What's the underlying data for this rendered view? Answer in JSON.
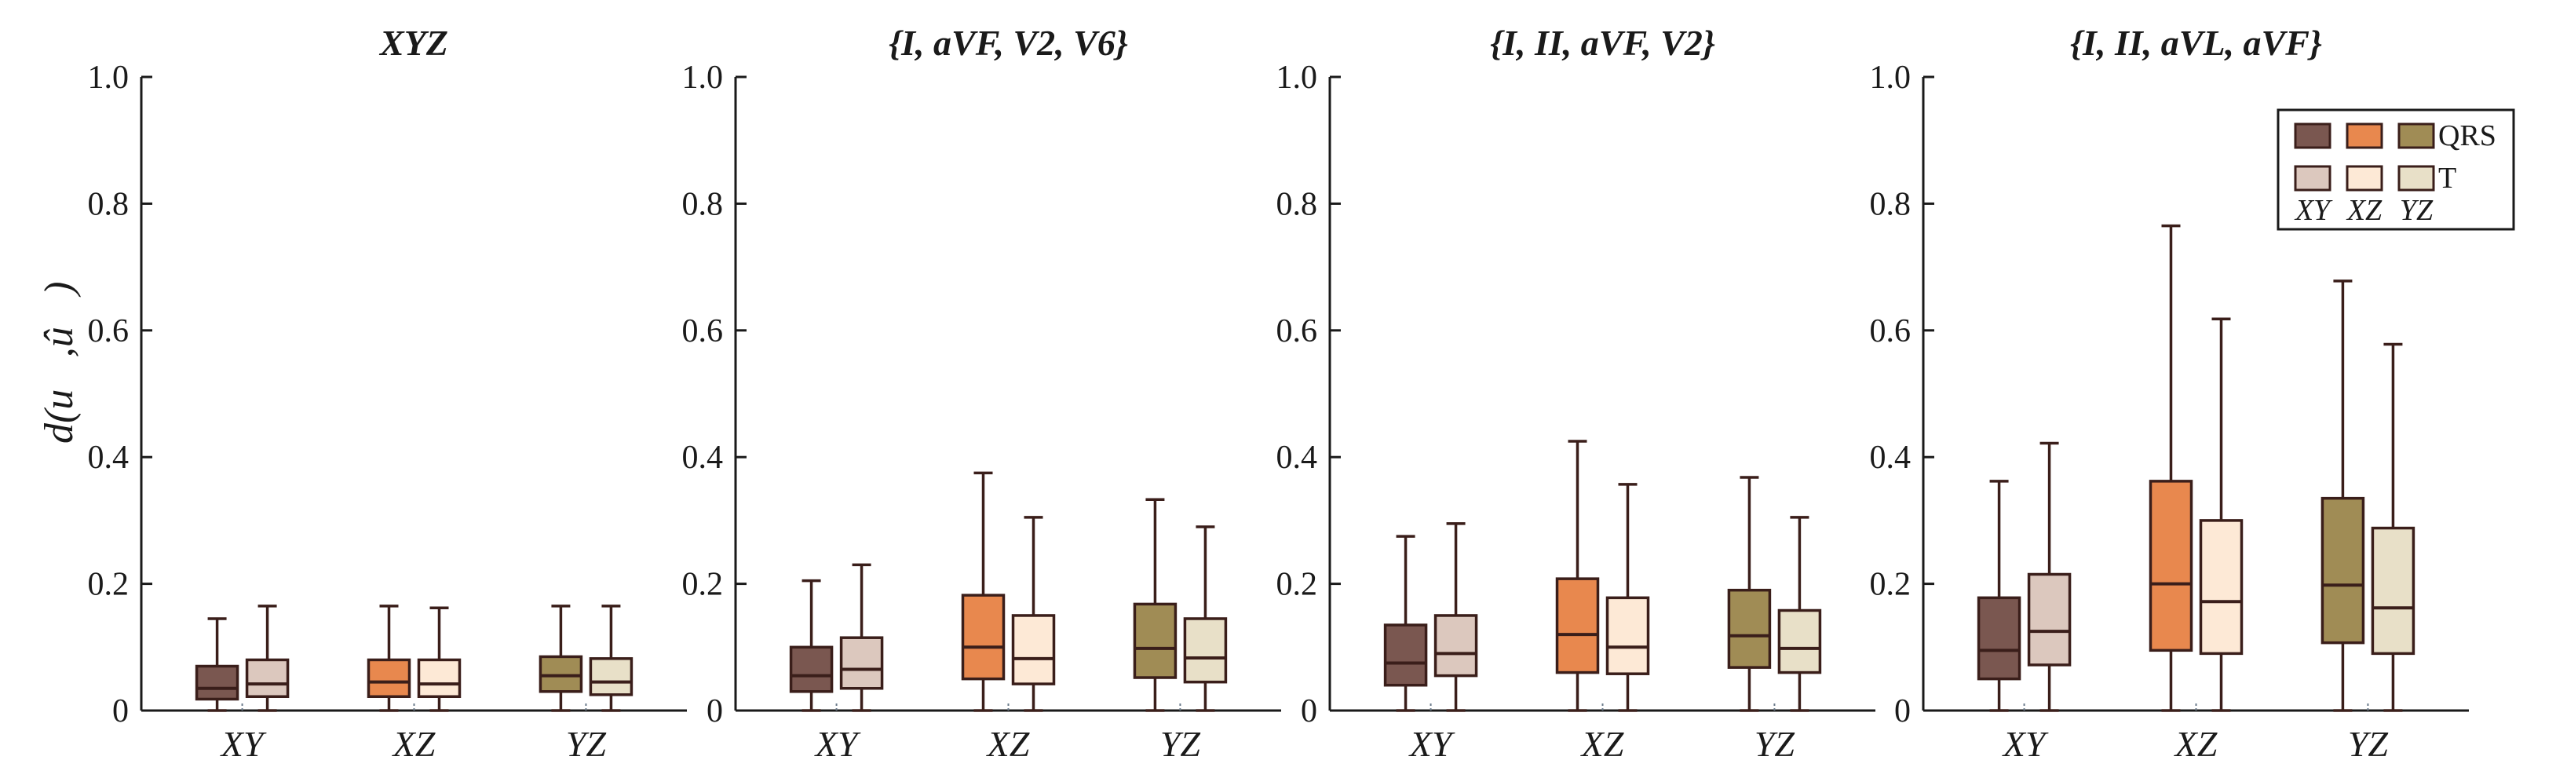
{
  "chart_data": {
    "type": "box",
    "ylabel": "𝓛d(u⃗,û⃗)",
    "ylim": [
      0,
      1.0
    ],
    "yticks": [
      0,
      0.2,
      0.4,
      0.6,
      0.8,
      1.0
    ],
    "ytick_labels": [
      "0",
      "0.2",
      "0.4",
      "0.6",
      "0.8",
      "1.0"
    ],
    "categories": [
      "XY",
      "XZ",
      "YZ"
    ],
    "series_names": [
      "QRS",
      "T"
    ],
    "colors": {
      "QRS": {
        "XY": "#7a5750",
        "XZ": "#e8884e",
        "YZ": "#a08c55"
      },
      "T": {
        "XY": "#dcc8be",
        "XZ": "#fde9d6",
        "YZ": "#e8e0c8"
      },
      "stroke": "#3a1e1a",
      "axis": "#1a1a1a"
    },
    "legend": {
      "position": "top-right",
      "row_labels": [
        "QRS",
        "T"
      ],
      "col_labels": [
        "XY",
        "XZ",
        "YZ"
      ]
    },
    "panels": [
      {
        "title": "XYZ",
        "boxes": {
          "QRS": [
            {
              "min": 0,
              "q1": 0.018,
              "median": 0.035,
              "q3": 0.07,
              "max": 0.145
            },
            {
              "min": 0,
              "q1": 0.022,
              "median": 0.045,
              "q3": 0.08,
              "max": 0.165
            },
            {
              "min": 0,
              "q1": 0.03,
              "median": 0.055,
              "q3": 0.085,
              "max": 0.165
            }
          ],
          "T": [
            {
              "min": 0,
              "q1": 0.022,
              "median": 0.042,
              "q3": 0.08,
              "max": 0.165
            },
            {
              "min": 0,
              "q1": 0.022,
              "median": 0.042,
              "q3": 0.08,
              "max": 0.162
            },
            {
              "min": 0,
              "q1": 0.025,
              "median": 0.045,
              "q3": 0.082,
              "max": 0.165
            }
          ]
        }
      },
      {
        "title": "{I, aVF, V2, V6}",
        "boxes": {
          "QRS": [
            {
              "min": 0,
              "q1": 0.03,
              "median": 0.055,
              "q3": 0.1,
              "max": 0.205
            },
            {
              "min": 0,
              "q1": 0.05,
              "median": 0.1,
              "q3": 0.182,
              "max": 0.375
            },
            {
              "min": 0,
              "q1": 0.052,
              "median": 0.098,
              "q3": 0.168,
              "max": 0.333
            }
          ],
          "T": [
            {
              "min": 0,
              "q1": 0.035,
              "median": 0.065,
              "q3": 0.115,
              "max": 0.23
            },
            {
              "min": 0,
              "q1": 0.042,
              "median": 0.082,
              "q3": 0.15,
              "max": 0.305
            },
            {
              "min": 0,
              "q1": 0.045,
              "median": 0.083,
              "q3": 0.145,
              "max": 0.29
            }
          ]
        }
      },
      {
        "title": "{I, II, aVF, V2}",
        "boxes": {
          "QRS": [
            {
              "min": 0,
              "q1": 0.04,
              "median": 0.075,
              "q3": 0.135,
              "max": 0.275
            },
            {
              "min": 0,
              "q1": 0.06,
              "median": 0.12,
              "q3": 0.208,
              "max": 0.425
            },
            {
              "min": 0,
              "q1": 0.068,
              "median": 0.118,
              "q3": 0.19,
              "max": 0.368
            }
          ],
          "T": [
            {
              "min": 0,
              "q1": 0.055,
              "median": 0.09,
              "q3": 0.15,
              "max": 0.295
            },
            {
              "min": 0,
              "q1": 0.058,
              "median": 0.1,
              "q3": 0.178,
              "max": 0.357
            },
            {
              "min": 0,
              "q1": 0.06,
              "median": 0.098,
              "q3": 0.158,
              "max": 0.305
            }
          ]
        }
      },
      {
        "title": "{I, II, aVL, aVF}",
        "boxes": {
          "QRS": [
            {
              "min": 0,
              "q1": 0.05,
              "median": 0.095,
              "q3": 0.178,
              "max": 0.362
            },
            {
              "min": 0,
              "q1": 0.095,
              "median": 0.2,
              "q3": 0.362,
              "max": 0.765
            },
            {
              "min": 0,
              "q1": 0.107,
              "median": 0.198,
              "q3": 0.335,
              "max": 0.678
            }
          ],
          "T": [
            {
              "min": 0,
              "q1": 0.072,
              "median": 0.125,
              "q3": 0.215,
              "max": 0.422
            },
            {
              "min": 0,
              "q1": 0.09,
              "median": 0.172,
              "q3": 0.3,
              "max": 0.618
            },
            {
              "min": 0,
              "q1": 0.09,
              "median": 0.162,
              "q3": 0.288,
              "max": 0.578
            }
          ]
        }
      }
    ]
  }
}
